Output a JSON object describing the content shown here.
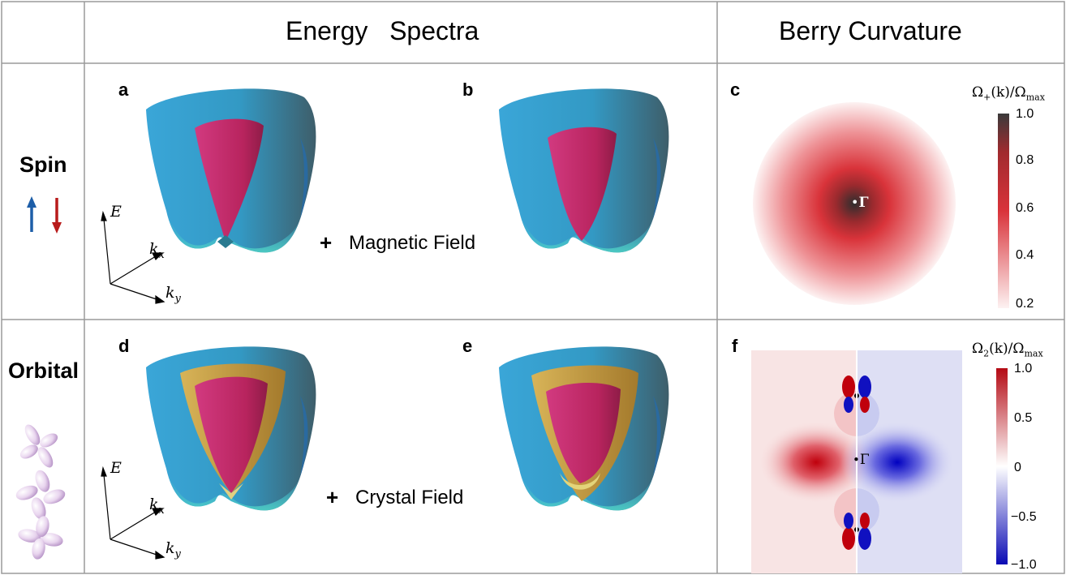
{
  "headers": {
    "energy_spectra": "Energy   Spectra",
    "berry_curvature": "Berry Curvature"
  },
  "rows": {
    "spin": "Spin",
    "orbital": "Orbital"
  },
  "panels": {
    "a": "a",
    "b": "b",
    "c": "c",
    "d": "d",
    "e": "e",
    "f": "f"
  },
  "operations": {
    "plus": "+",
    "magnetic_field": "Magnetic Field",
    "crystal_field": "Crystal Field"
  },
  "axes": {
    "E": "E",
    "kx": "k",
    "kx_sub": "x",
    "ky": "k",
    "ky_sub": "y"
  },
  "gamma": "Γ",
  "colorbar_c": {
    "label_main": "Ω",
    "label_sub": "+",
    "label_rest": "(k)/Ω",
    "label_max": "max",
    "ticks": [
      "1.0",
      "0.8",
      "0.6",
      "0.4",
      "0.2"
    ],
    "range": [
      0.2,
      1.0
    ],
    "colors": [
      "#fdf2f2",
      "#d9333a",
      "#3a3a3a"
    ]
  },
  "colorbar_f": {
    "label_main": "Ω",
    "label_sub": "2",
    "label_rest": "(k)/Ω",
    "label_max": "max",
    "ticks": [
      "1.0",
      "0.5",
      "0",
      "−0.5",
      "−1.0"
    ],
    "range": [
      -1.0,
      1.0
    ],
    "colors": [
      "#0a0ab4",
      "#ffffff",
      "#b40a14"
    ]
  },
  "colors": {
    "outer_surface": "#3aa3d4",
    "inner_surface": "#c42a6a",
    "orbital_shell": "#c9a24a",
    "spin_up": "#1d5ea8",
    "spin_down": "#b81b1b"
  }
}
